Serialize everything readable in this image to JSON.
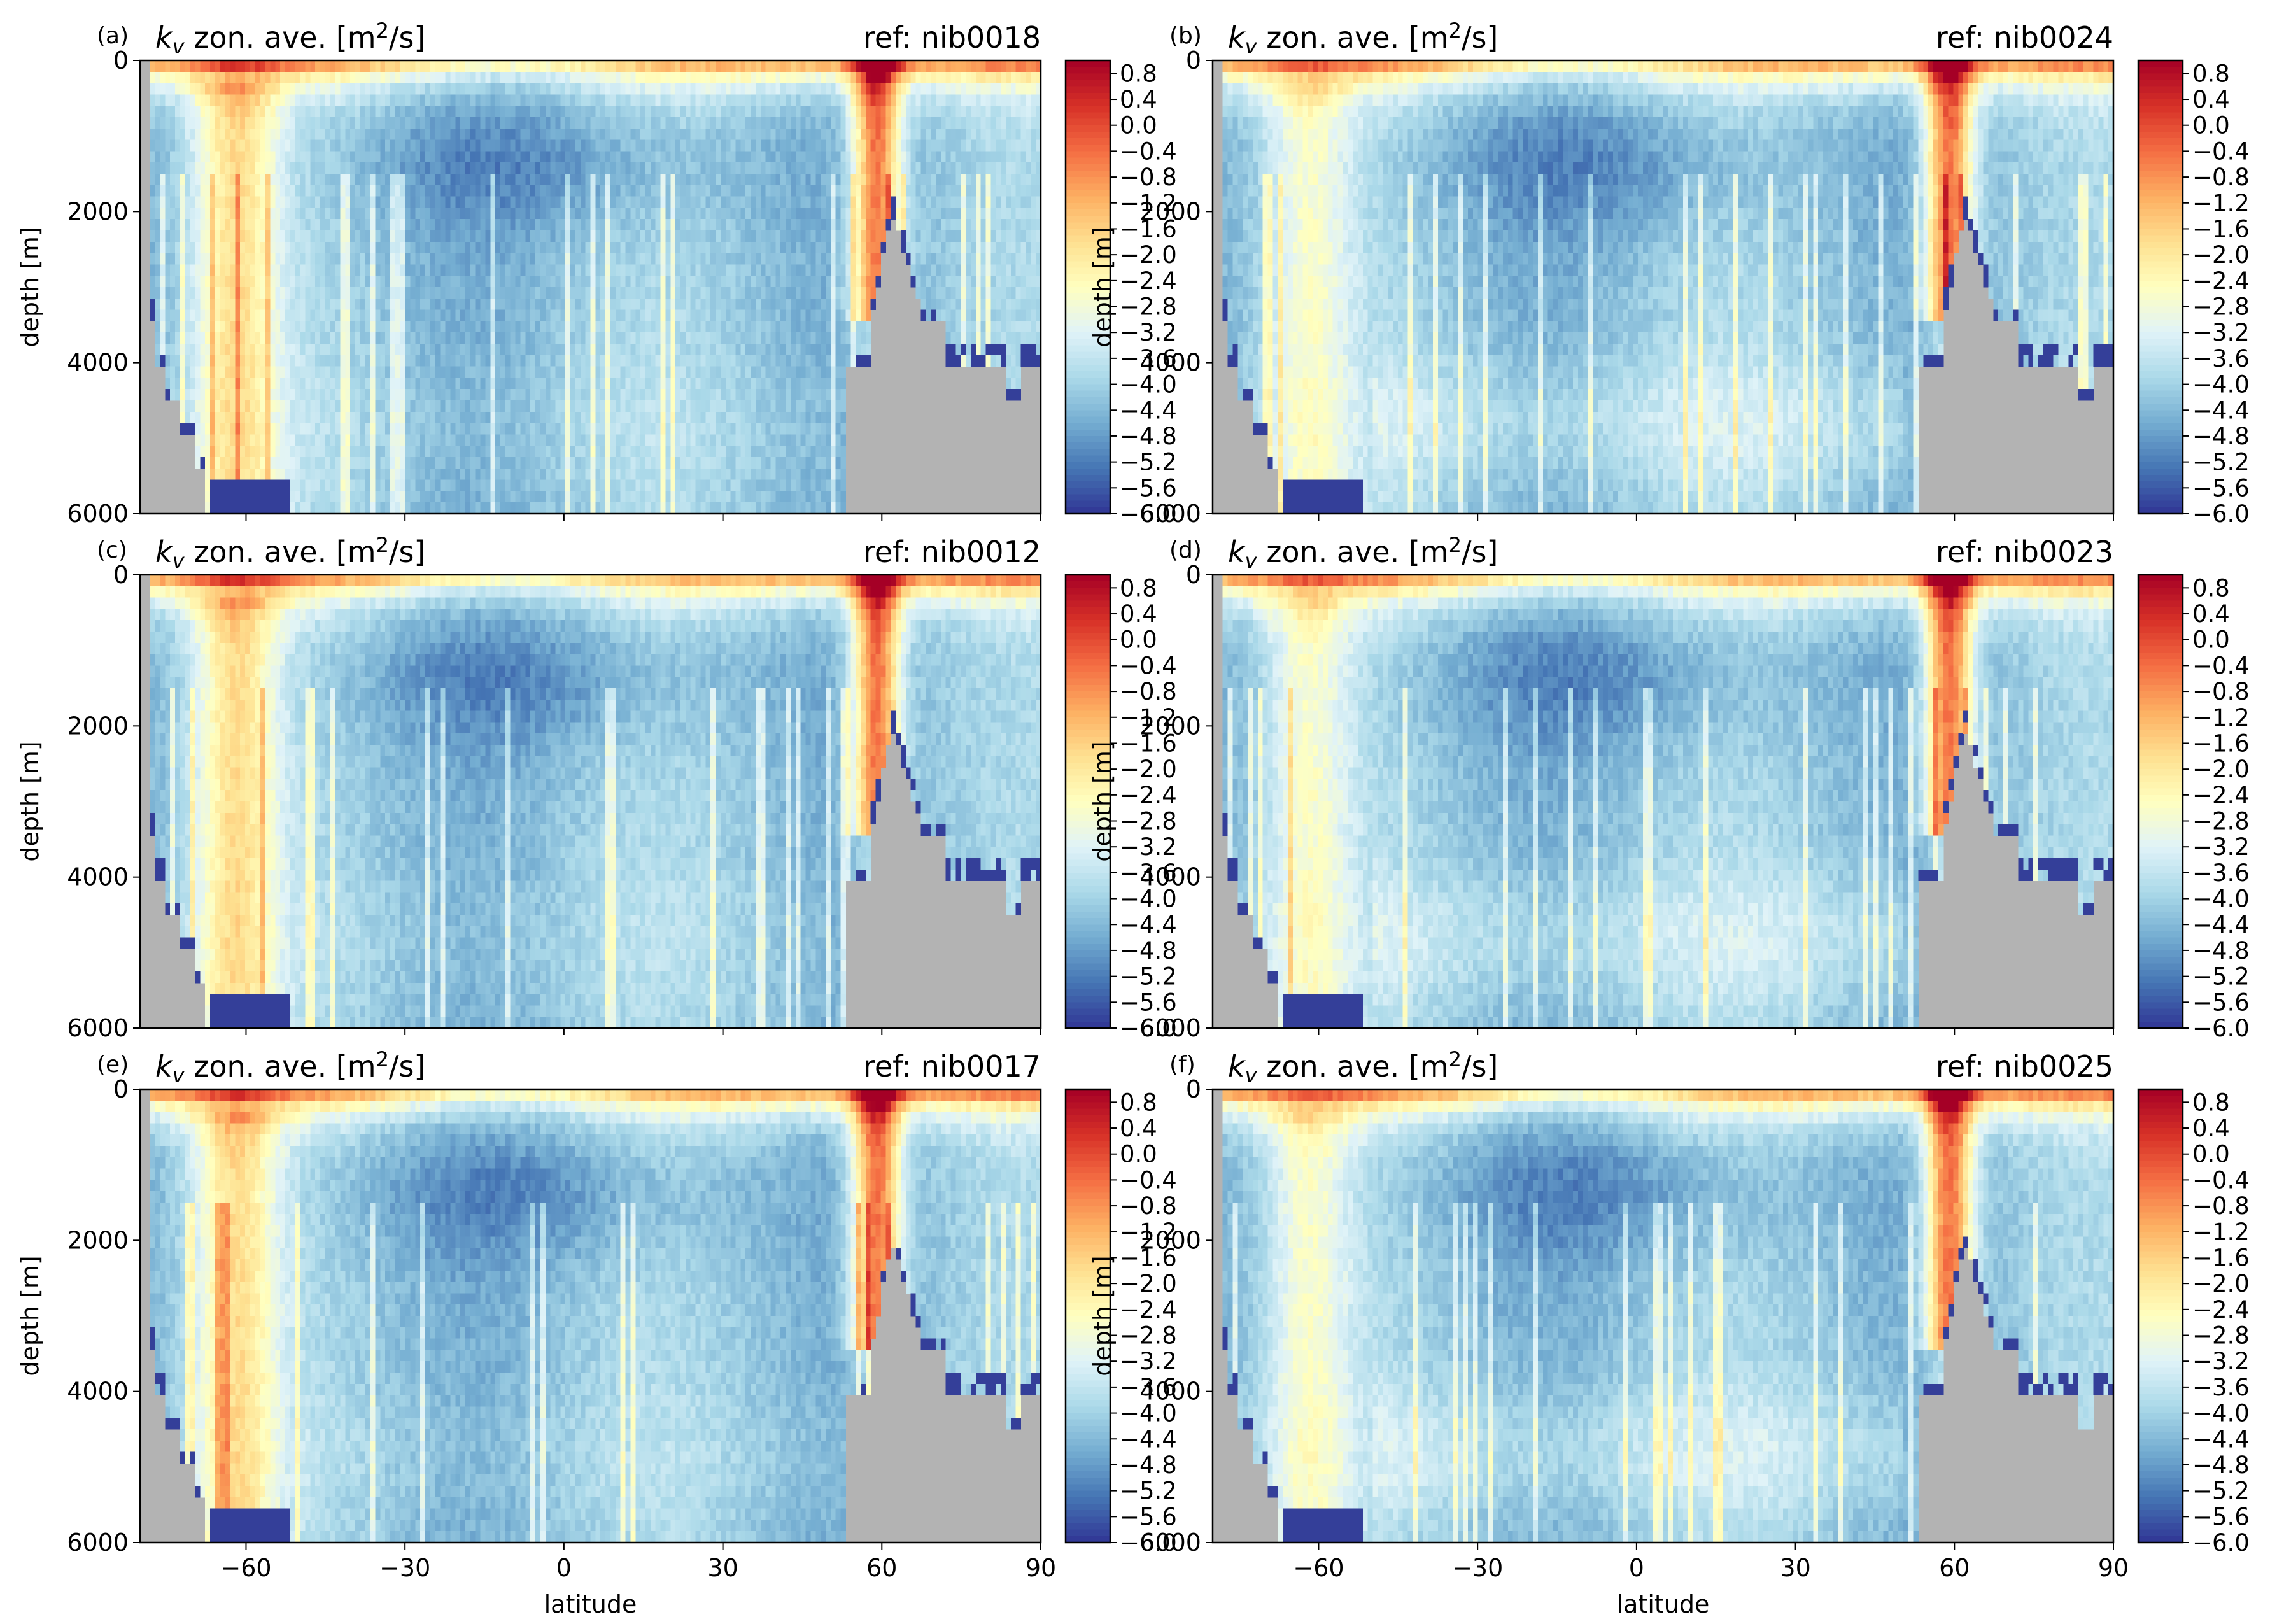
{
  "colorbar": {
    "ticks": [
      "0.8",
      "0.4",
      "0.0",
      "−0.4",
      "−0.8",
      "−1.2",
      "−1.6",
      "−2.0",
      "−2.4",
      "−2.8",
      "−3.2",
      "−3.6",
      "−4.0",
      "−4.4",
      "−4.8",
      "−5.2",
      "−5.6",
      "−6.0"
    ],
    "colors": [
      "#313695",
      "#4575b4",
      "#74add1",
      "#abd9e9",
      "#e0f3f8",
      "#ffffbf",
      "#fee090",
      "#fdae61",
      "#f46d43",
      "#d73027",
      "#a50026"
    ],
    "land_color": "#b3b3b3"
  },
  "axes": {
    "xticks": [
      "−60",
      "−30",
      "0",
      "30",
      "60",
      "90"
    ],
    "yticks": [
      "0",
      "2000",
      "4000",
      "6000"
    ],
    "xlabel": "latitude",
    "ylabel": "depth [m]"
  },
  "chart_data": [
    {
      "type": "heatmap",
      "panel_label": "(a)",
      "title_main": "zon. ave. [m",
      "title_unit": "/s]",
      "title_var": "k",
      "title_sub": "v",
      "title_sup": "2",
      "ref": "ref: nib0018",
      "xlim": [
        -80,
        90
      ],
      "ylim": [
        6000,
        0
      ],
      "clim": [
        -6.0,
        1.0
      ],
      "colorbar_label_values": [
        0.8,
        -6.0
      ],
      "northern_sinking_latitude": 60,
      "southern_upwelling_latitude": -65
    },
    {
      "type": "heatmap",
      "panel_label": "(b)",
      "title_main": "zon. ave. [m",
      "title_unit": "/s]",
      "title_var": "k",
      "title_sub": "v",
      "title_sup": "2",
      "ref": "ref: nib0024",
      "xlim": [
        -80,
        90
      ],
      "ylim": [
        6000,
        0
      ],
      "clim": [
        -6.0,
        1.0
      ],
      "northern_sinking_latitude": 60,
      "southern_upwelling_latitude": -65
    },
    {
      "type": "heatmap",
      "panel_label": "(c)",
      "title_main": "zon. ave. [m",
      "title_unit": "/s]",
      "title_var": "k",
      "title_sub": "v",
      "title_sup": "2",
      "ref": "ref: nib0012",
      "xlim": [
        -80,
        90
      ],
      "ylim": [
        6000,
        0
      ],
      "clim": [
        -6.0,
        1.0
      ],
      "northern_sinking_latitude": 60,
      "southern_upwelling_latitude": -65
    },
    {
      "type": "heatmap",
      "panel_label": "(d)",
      "title_main": "zon. ave. [m",
      "title_unit": "/s]",
      "title_var": "k",
      "title_sub": "v",
      "title_sup": "2",
      "ref": "ref: nib0023",
      "xlim": [
        -80,
        90
      ],
      "ylim": [
        6000,
        0
      ],
      "clim": [
        -6.0,
        1.0
      ],
      "northern_sinking_latitude": 60,
      "southern_upwelling_latitude": -65
    },
    {
      "type": "heatmap",
      "panel_label": "(e)",
      "title_main": "zon. ave. [m",
      "title_unit": "/s]",
      "title_var": "k",
      "title_sub": "v",
      "title_sup": "2",
      "ref": "ref: nib0017",
      "xlim": [
        -80,
        90
      ],
      "ylim": [
        6000,
        0
      ],
      "clim": [
        -6.0,
        1.0
      ],
      "northern_sinking_latitude": 60,
      "southern_upwelling_latitude": -65
    },
    {
      "type": "heatmap",
      "panel_label": "(f)",
      "title_main": "zon. ave. [m",
      "title_unit": "/s]",
      "title_var": "k",
      "title_sub": "v",
      "title_sup": "2",
      "ref": "ref: nib0025",
      "xlim": [
        -80,
        90
      ],
      "ylim": [
        6000,
        0
      ],
      "clim": [
        -6.0,
        1.0
      ],
      "northern_sinking_latitude": 60,
      "southern_upwelling_latitude": -65
    }
  ]
}
